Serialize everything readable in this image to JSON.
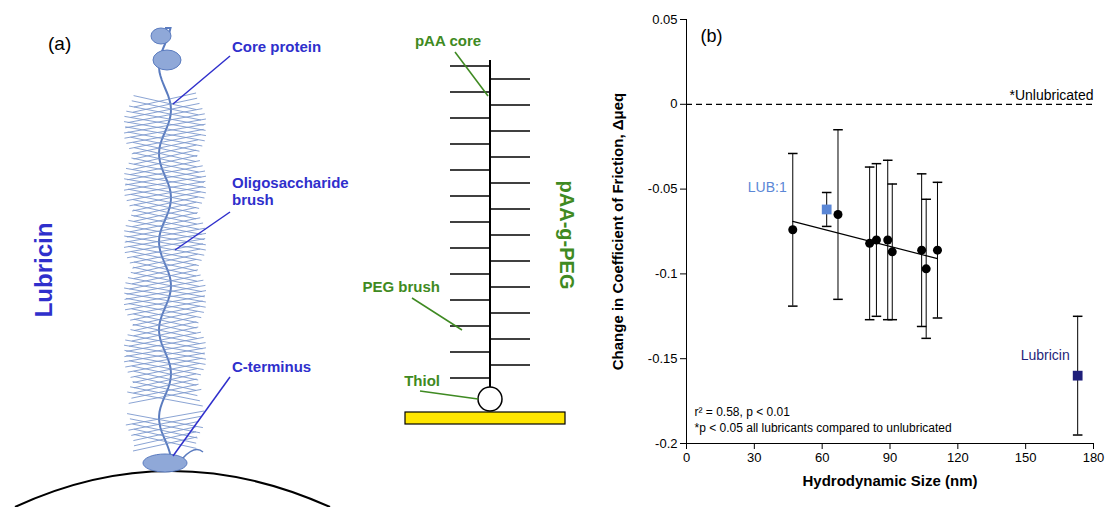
{
  "diagram": {
    "panel_label": "(a)",
    "lubricin": {
      "title": "Lubricin",
      "parts": [
        "Core protein",
        "Oligosaccharide brush",
        "C-terminus"
      ]
    },
    "polymer": {
      "title": "pAA-g-PEG",
      "parts": [
        "pAA core",
        "PEG brush",
        "Thiol"
      ]
    }
  },
  "chart_data": {
    "type": "scatter",
    "panel_label": "(b)",
    "xlabel": "Hydrodynamic Size (nm)",
    "ylabel": "Change in Coefficient of Friction, Δμeq",
    "xlim": [
      0,
      180
    ],
    "xticks": [
      0,
      30,
      60,
      90,
      120,
      150,
      180
    ],
    "ylim": [
      -0.2,
      0.05
    ],
    "yticks": [
      -0.2,
      -0.15,
      -0.1,
      -0.05,
      0,
      0.05
    ],
    "grid": false,
    "series": [
      {
        "color": "#000000",
        "marker": "circle",
        "x": [
          47,
          67,
          81,
          84,
          89,
          91,
          104,
          106,
          111
        ],
        "values": [
          -0.074,
          -0.065,
          -0.082,
          -0.08,
          -0.08,
          -0.087,
          -0.086,
          -0.097,
          -0.086
        ],
        "errors": [
          0.045,
          0.05,
          0.045,
          0.045,
          0.047,
          0.04,
          0.045,
          0.041,
          0.04
        ]
      },
      {
        "name": "LUB:1",
        "color": "#5b87d6",
        "marker": "square",
        "x": [
          62
        ],
        "values": [
          -0.062
        ],
        "errors": [
          0.01
        ]
      },
      {
        "name": "Lubricin",
        "color": "#1f1f7a",
        "marker": "square",
        "x": [
          173
        ],
        "values": [
          -0.16
        ],
        "errors": [
          0.035
        ]
      }
    ],
    "trend_line": {
      "x": [
        47,
        111
      ],
      "values": [
        -0.069,
        -0.091
      ]
    },
    "reference_line": {
      "value": 0,
      "label": "*Unlubricated",
      "line_style": "dashed"
    },
    "annotations": [
      "r² = 0.58, p < 0.01",
      "*p < 0.05 all lubricants compared to unlubricated"
    ]
  }
}
